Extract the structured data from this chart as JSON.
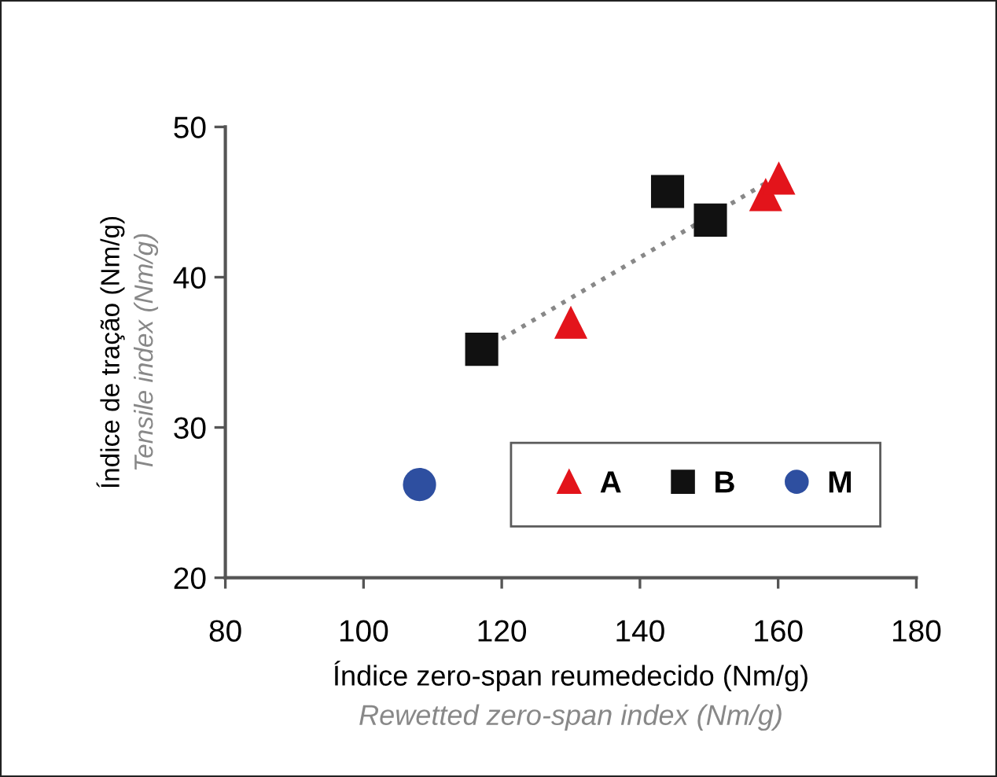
{
  "chart_data": {
    "type": "scatter",
    "xlabel": "Índice zero-span reumedecido (Nm/g)",
    "ylabel": "Índice de tração (Nm/g)",
    "annotations": [
      "Rewetted zero-span index (Nm/g)",
      "Tensile index (Nm/g)"
    ],
    "xlim": [
      80,
      180
    ],
    "xticks": [
      80,
      100,
      120,
      140,
      160,
      180
    ],
    "ylim": [
      20,
      50
    ],
    "yticks": [
      20,
      30,
      40,
      50
    ],
    "grid": false,
    "legend": "bottom right",
    "series": [
      {
        "type": "line",
        "color": "#888888",
        "line_style": "dotted",
        "marker": "none",
        "x": [
          120,
          158
        ],
        "values": [
          35.9,
          46.2
        ]
      },
      {
        "name": "A",
        "color": "#e3141b",
        "marker": "triangle",
        "x": [
          130,
          158.2,
          160.1
        ],
        "values": [
          37.0,
          45.5,
          46.6
        ]
      },
      {
        "name": "B",
        "color": "#111111",
        "marker": "square",
        "x": [
          117.1,
          144,
          150.2
        ],
        "values": [
          35.2,
          45.7,
          43.8
        ]
      },
      {
        "name": "M",
        "color": "#2e4fa0",
        "marker": "circle",
        "x": [
          108.1
        ],
        "values": [
          26.2
        ]
      }
    ]
  }
}
